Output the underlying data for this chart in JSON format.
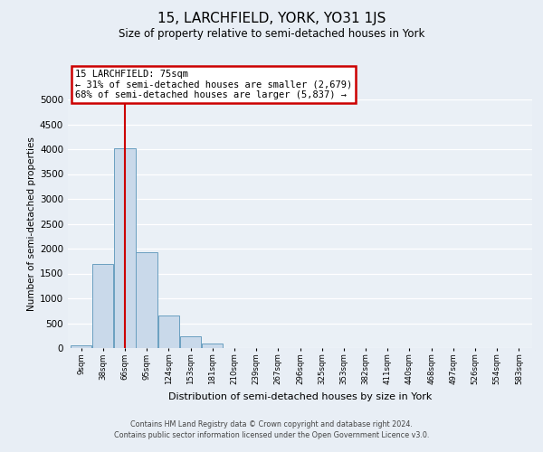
{
  "title": "15, LARCHFIELD, YORK, YO31 1JS",
  "subtitle": "Size of property relative to semi-detached houses in York",
  "xlabel": "Distribution of semi-detached houses by size in York",
  "ylabel": "Number of semi-detached properties",
  "bin_labels": [
    "9sqm",
    "38sqm",
    "66sqm",
    "95sqm",
    "124sqm",
    "153sqm",
    "181sqm",
    "210sqm",
    "239sqm",
    "267sqm",
    "296sqm",
    "325sqm",
    "353sqm",
    "382sqm",
    "411sqm",
    "440sqm",
    "468sqm",
    "497sqm",
    "526sqm",
    "554sqm",
    "583sqm"
  ],
  "bar_values": [
    50,
    1700,
    4020,
    1930,
    650,
    240,
    90,
    0,
    0,
    0,
    0,
    0,
    0,
    0,
    0,
    0,
    0,
    0,
    0,
    0,
    0
  ],
  "bar_color": "#c9d9ea",
  "bar_edge_color": "#6a9fc0",
  "property_bin_index": 2,
  "vline_color": "#cc0000",
  "annotation_title": "15 LARCHFIELD: 75sqm",
  "annotation_line1": "← 31% of semi-detached houses are smaller (2,679)",
  "annotation_line2": "68% of semi-detached houses are larger (5,837) →",
  "annotation_box_color": "#cc0000",
  "ylim": [
    0,
    5000
  ],
  "yticks": [
    0,
    500,
    1000,
    1500,
    2000,
    2500,
    3000,
    3500,
    4000,
    4500,
    5000
  ],
  "bg_color": "#e8eef5",
  "plot_bg_color": "#eaf0f6",
  "footer_line1": "Contains HM Land Registry data © Crown copyright and database right 2024.",
  "footer_line2": "Contains public sector information licensed under the Open Government Licence v3.0."
}
